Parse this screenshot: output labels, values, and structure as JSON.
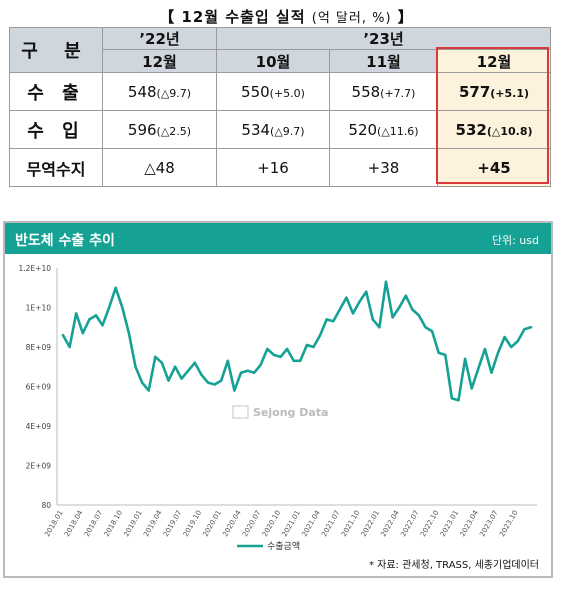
{
  "table": {
    "title": "【 12월 수출입 실적",
    "title_unit": "(억 달러, %)",
    "title_end": "】",
    "corner": "구 분",
    "year_labels": [
      "’22년",
      "’23년"
    ],
    "month_labels": [
      "12월",
      "10월",
      "11월",
      "12월"
    ],
    "rows": [
      {
        "label": "수 출",
        "cells": [
          {
            "main": "548",
            "sub": "(△9.7)"
          },
          {
            "main": "550",
            "sub": "(+5.0)"
          },
          {
            "main": "558",
            "sub": "(+7.7)"
          },
          {
            "main": "577",
            "sub": "(+5.1)"
          }
        ]
      },
      {
        "label": "수 입",
        "cells": [
          {
            "main": "596",
            "sub": "(△2.5)"
          },
          {
            "main": "534",
            "sub": "(△9.7)"
          },
          {
            "main": "520",
            "sub": "(△11.6)"
          },
          {
            "main": "532",
            "sub": "(△10.8)"
          }
        ]
      },
      {
        "label": "무역수지",
        "cells": [
          {
            "main": "△48",
            "sub": ""
          },
          {
            "main": "+16",
            "sub": ""
          },
          {
            "main": "+38",
            "sub": ""
          },
          {
            "main": "+45",
            "sub": ""
          }
        ]
      }
    ],
    "highlight_color": "#d9393b"
  },
  "chart_panel": {
    "title": "반도체 수출 추이",
    "unit": "단위: usd",
    "watermark": "Sejong Data",
    "source": "* 자료: 관세청, TRASS, 세종기업데이터",
    "header_color": "#16a195",
    "line_color": "#16a195"
  },
  "chart_data": {
    "type": "line",
    "title": "반도체 수출 추이",
    "ylim": [
      80,
      12000000000
    ],
    "yticks": [
      "1.2E+10",
      "1E+10",
      "8E+09",
      "6E+09",
      "4E+09",
      "2E+09",
      "80"
    ],
    "ytick_values": [
      12000000000,
      10000000000,
      8000000000,
      6000000000,
      4000000000,
      2000000000,
      80
    ],
    "xtick_labels": [
      "2018.01",
      "2018.04",
      "2018.07",
      "2018.10",
      "2019.01",
      "2019.04",
      "2019.07",
      "2019.10",
      "2020.01",
      "2020.04",
      "2020.07",
      "2020.10",
      "2021.01",
      "2021.04",
      "2021.07",
      "2021.10",
      "2022.01",
      "2022.04",
      "2022.07",
      "2022.10",
      "2023.01",
      "2023.04",
      "2023.07",
      "2023.10"
    ],
    "series": [
      {
        "name": "수출금액",
        "x": [
          "2018.01",
          "2018.02",
          "2018.03",
          "2018.04",
          "2018.05",
          "2018.06",
          "2018.07",
          "2018.08",
          "2018.09",
          "2018.10",
          "2018.11",
          "2018.12",
          "2019.01",
          "2019.02",
          "2019.03",
          "2019.04",
          "2019.05",
          "2019.06",
          "2019.07",
          "2019.08",
          "2019.09",
          "2019.10",
          "2019.11",
          "2019.12",
          "2020.01",
          "2020.02",
          "2020.03",
          "2020.04",
          "2020.05",
          "2020.06",
          "2020.07",
          "2020.08",
          "2020.09",
          "2020.10",
          "2020.11",
          "2020.12",
          "2021.01",
          "2021.02",
          "2021.03",
          "2021.04",
          "2021.05",
          "2021.06",
          "2021.07",
          "2021.08",
          "2021.09",
          "2021.10",
          "2021.11",
          "2021.12",
          "2022.01",
          "2022.02",
          "2022.03",
          "2022.04",
          "2022.05",
          "2022.06",
          "2022.07",
          "2022.08",
          "2022.09",
          "2022.10",
          "2022.11",
          "2022.12",
          "2023.01",
          "2023.02",
          "2023.03",
          "2023.04",
          "2023.05",
          "2023.06",
          "2023.07",
          "2023.08",
          "2023.09",
          "2023.10",
          "2023.11",
          "2023.12"
        ],
        "values": [
          8600000000,
          8000000000,
          9700000000,
          8700000000,
          9400000000,
          9600000000,
          9100000000,
          10000000000,
          11000000000,
          10000000000,
          8700000000,
          7000000000,
          6200000000,
          5800000000,
          7500000000,
          7200000000,
          6300000000,
          7000000000,
          6400000000,
          6800000000,
          7200000000,
          6600000000,
          6200000000,
          6100000000,
          6300000000,
          7300000000,
          5800000000,
          6700000000,
          6800000000,
          6700000000,
          7100000000,
          7900000000,
          7600000000,
          7500000000,
          7900000000,
          7300000000,
          7300000000,
          8100000000,
          8000000000,
          8600000000,
          9400000000,
          9300000000,
          9900000000,
          10500000000,
          9700000000,
          10300000000,
          10800000000,
          9400000000,
          9000000000,
          11300000000,
          9500000000,
          10000000000,
          10600000000,
          9900000000,
          9600000000,
          9000000000,
          8800000000,
          7700000000,
          7600000000,
          5400000000,
          5300000000,
          7400000000,
          5900000000,
          6900000000,
          7900000000,
          6700000000,
          7700000000,
          8500000000,
          8000000000,
          8300000000,
          8900000000,
          9000000000
        ]
      }
    ],
    "legend": "bottom",
    "grid": false
  }
}
